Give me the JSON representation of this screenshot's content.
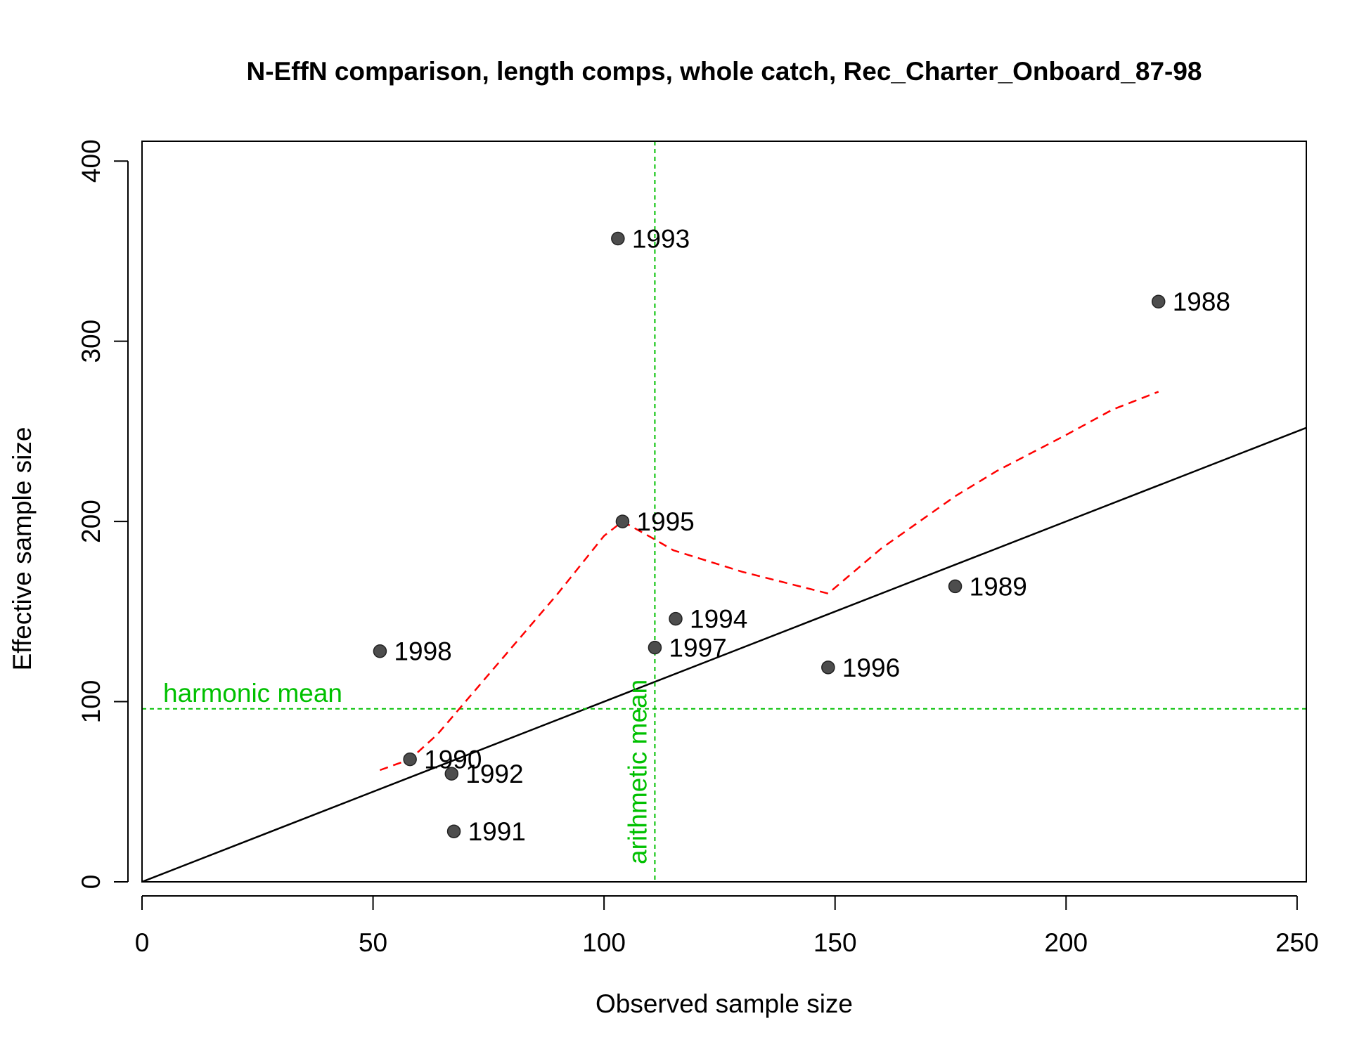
{
  "chart_data": {
    "type": "scatter",
    "title": "N-EffN comparison, length comps, whole catch, Rec_Charter_Onboard_87-98",
    "xlabel": "Observed sample size",
    "ylabel": "Effective sample size",
    "xlim": [
      0,
      252
    ],
    "ylim": [
      0,
      411
    ],
    "x_ticks": [
      0,
      50,
      100,
      150,
      200,
      250
    ],
    "y_ticks": [
      0,
      100,
      200,
      300,
      400
    ],
    "grid": false,
    "legend": "none",
    "points": [
      {
        "label": "1988",
        "x": 220.0,
        "y": 322
      },
      {
        "label": "1989",
        "x": 176.0,
        "y": 164
      },
      {
        "label": "1990",
        "x": 58.0,
        "y": 68
      },
      {
        "label": "1991",
        "x": 67.5,
        "y": 28
      },
      {
        "label": "1992",
        "x": 67.0,
        "y": 60
      },
      {
        "label": "1993",
        "x": 103.0,
        "y": 357
      },
      {
        "label": "1994",
        "x": 115.5,
        "y": 146
      },
      {
        "label": "1995",
        "x": 104.0,
        "y": 200
      },
      {
        "label": "1996",
        "x": 148.5,
        "y": 119
      },
      {
        "label": "1997",
        "x": 111.0,
        "y": 130
      },
      {
        "label": "1998",
        "x": 51.5,
        "y": 128
      }
    ],
    "reference_lines": {
      "one_to_one": {
        "slope": 1,
        "intercept": 0,
        "color": "#000000"
      },
      "harmonic_mean": {
        "value": 96,
        "label": "harmonic mean",
        "color": "#00c000"
      },
      "arithmetic_mean": {
        "value": 111,
        "label": "arithmetic mean",
        "color": "#00c000"
      }
    },
    "smoother": {
      "color": "#ff0000",
      "x": [
        51.5,
        58,
        64,
        70,
        80,
        90,
        100,
        104,
        111,
        115,
        130,
        148.5,
        160,
        176,
        185,
        200,
        210,
        220
      ],
      "y": [
        62,
        68,
        82,
        100,
        130,
        160,
        192,
        200,
        190,
        184,
        172,
        160,
        185,
        214,
        228,
        248,
        262,
        272
      ]
    },
    "point_color": "#4d4d4d"
  }
}
